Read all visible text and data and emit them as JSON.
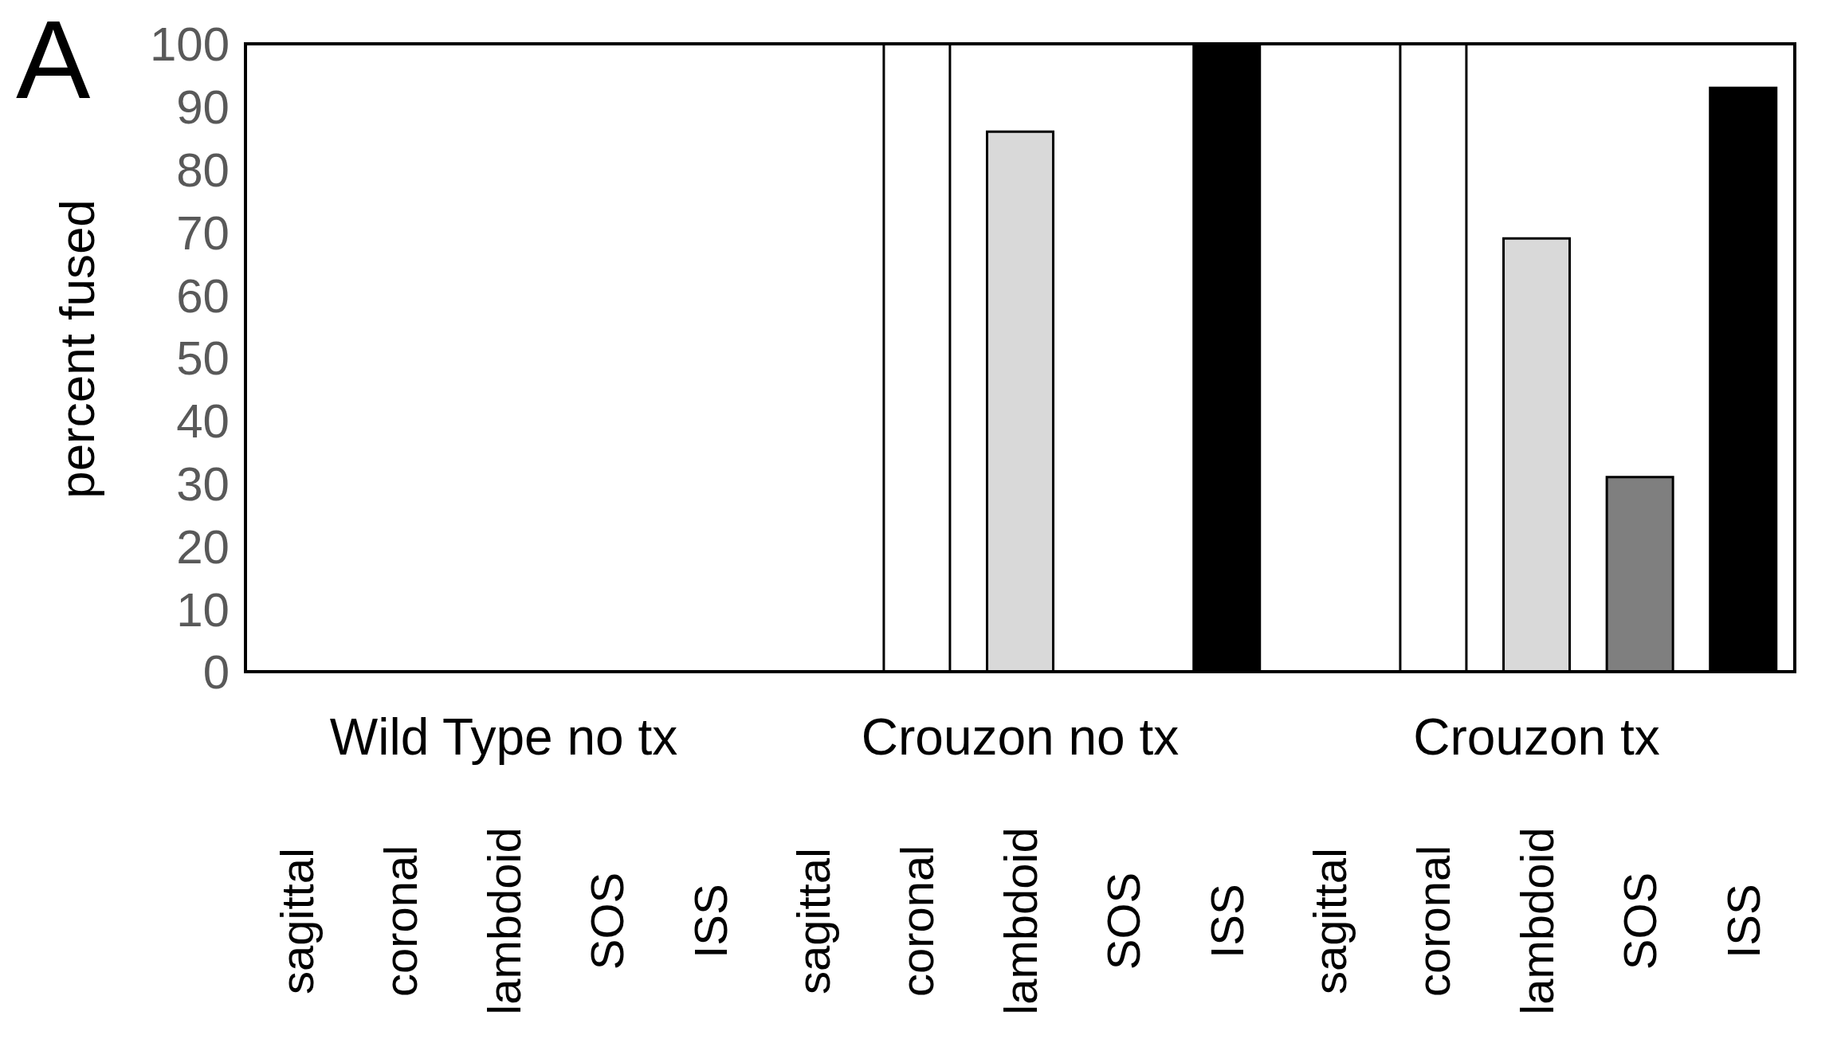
{
  "chart_data": {
    "type": "bar",
    "title": "A",
    "ylabel": "percent fused",
    "categories": [
      "sagittal",
      "coronal",
      "lambdoid",
      "SOS",
      "ISS",
      "sagittal",
      "coronal",
      "lambdoid",
      "SOS",
      "ISS",
      "sagittal",
      "coronal",
      "lambdoid",
      "SOS",
      "ISS"
    ],
    "values": [
      0,
      0,
      0,
      0,
      0,
      0,
      100,
      86,
      0,
      100,
      0,
      100,
      69,
      31,
      93
    ],
    "colors": [
      "#ffffff",
      "#ffffff",
      "#d9d9d9",
      "#7f7f7f",
      "#000000",
      "#ffffff",
      "#ffffff",
      "#d9d9d9",
      "#7f7f7f",
      "#000000",
      "#ffffff",
      "#ffffff",
      "#d9d9d9",
      "#7f7f7f",
      "#000000"
    ],
    "ylim": [
      0,
      100
    ],
    "yticks": [
      0,
      10,
      20,
      30,
      40,
      50,
      60,
      70,
      80,
      90,
      100
    ],
    "annotations": [
      "Wild Type no tx",
      "Crouzon no tx",
      "Crouzon tx"
    ],
    "grid": false,
    "legend": false
  }
}
